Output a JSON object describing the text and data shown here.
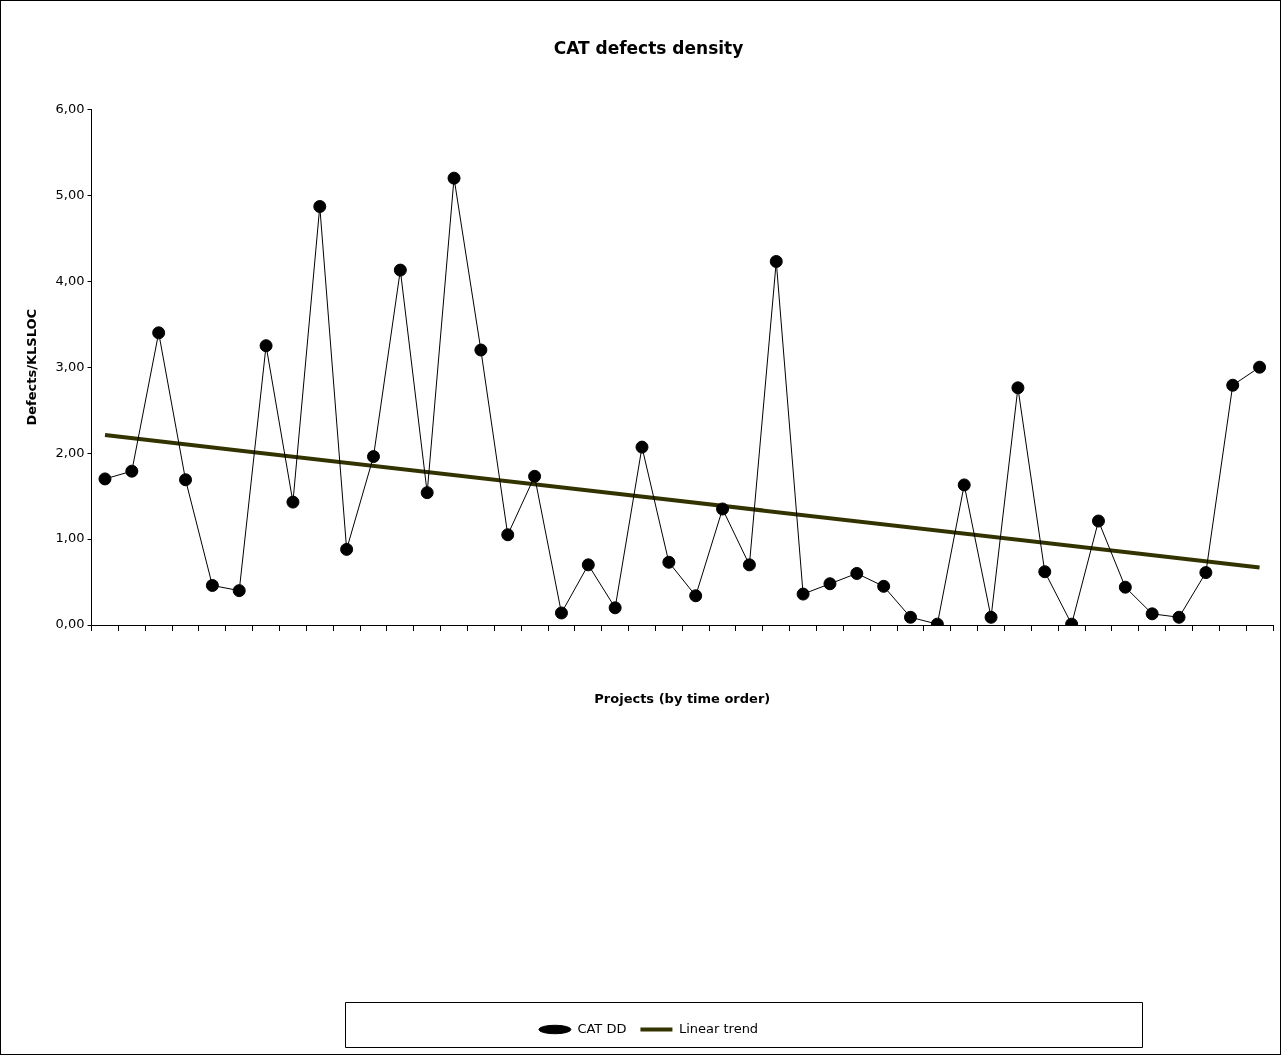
{
  "chart_data": {
    "type": "line",
    "title": "CAT defects density",
    "xlabel": "Projects (by time order)",
    "ylabel": "Defects/KLSLOC",
    "categories": [
      null,
      null,
      null,
      null,
      null,
      null,
      null,
      null,
      null,
      null,
      null,
      null,
      null,
      null,
      null,
      null,
      null,
      null,
      null,
      null,
      null,
      null,
      null,
      null,
      null,
      null,
      null,
      null,
      null,
      null,
      null,
      null,
      null,
      null,
      null,
      null,
      null,
      null,
      null,
      null,
      null,
      null,
      null,
      null
    ],
    "series": [
      {
        "name": "CAT DD",
        "color": "#000000",
        "marker": "circle",
        "values": [
          1.7,
          1.79,
          3.4,
          1.69,
          0.46,
          0.4,
          3.25,
          1.43,
          4.87,
          0.88,
          1.96,
          4.13,
          1.54,
          5.2,
          3.2,
          1.05,
          1.73,
          0.14,
          0.7,
          0.2,
          2.07,
          0.73,
          0.34,
          1.35,
          0.7,
          4.23,
          0.36,
          0.48,
          0.6,
          0.45,
          0.09,
          0.01,
          1.63,
          0.09,
          2.76,
          0.62,
          0.01,
          1.21,
          0.44,
          0.13,
          0.09,
          0.61,
          2.79,
          3.0
        ]
      },
      {
        "name": "Linear trend",
        "color": "#333300",
        "marker": "none",
        "values": [
          2.21,
          null,
          null,
          null,
          null,
          null,
          null,
          null,
          null,
          null,
          null,
          null,
          null,
          null,
          null,
          null,
          null,
          null,
          null,
          null,
          null,
          null,
          null,
          null,
          null,
          null,
          null,
          null,
          null,
          null,
          null,
          null,
          null,
          null,
          null,
          null,
          null,
          null,
          null,
          null,
          null,
          null,
          null,
          0.67
        ]
      }
    ],
    "ylim": [
      0,
      6
    ],
    "yticks": [
      {
        "value": 0,
        "label": "0,00"
      },
      {
        "value": 1,
        "label": "1,00"
      },
      {
        "value": 2,
        "label": "2,00"
      },
      {
        "value": 3,
        "label": "3,00"
      },
      {
        "value": 4,
        "label": "4,00"
      },
      {
        "value": 5,
        "label": "5,00"
      },
      {
        "value": 6,
        "label": "6,00"
      }
    ],
    "legend": "bottom"
  }
}
